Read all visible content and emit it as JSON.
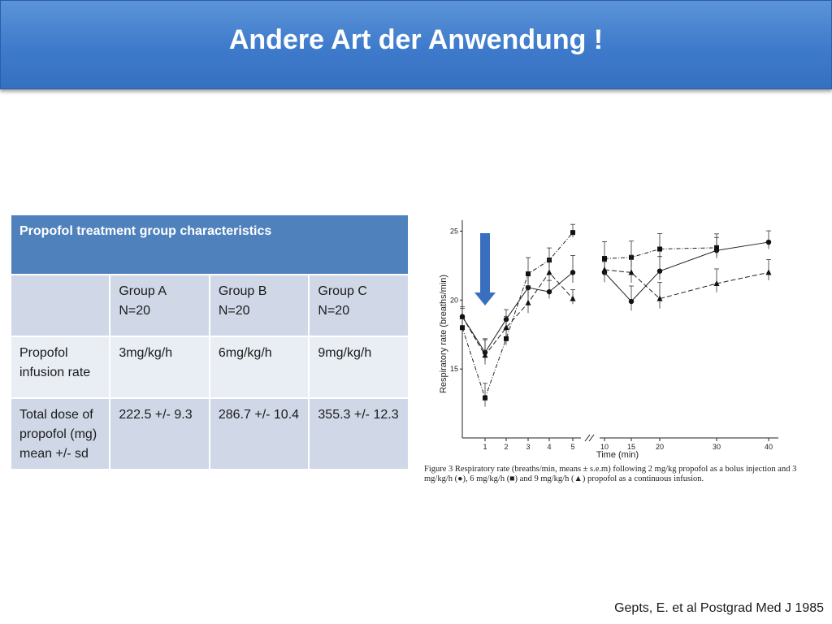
{
  "slide": {
    "title": "Andere Art der Anwendung !",
    "citation": "Gepts, E. et al Postgrad Med J 1985"
  },
  "table": {
    "caption": "Propofol treatment group characteristics",
    "groups": [
      "Group A\nN=20",
      "Group B\nN=20",
      "Group C\nN=20"
    ],
    "rows": [
      {
        "label": "Propofol infusion rate",
        "values": [
          "3mg/kg/h",
          "6mg/kg/h",
          "9mg/kg/h"
        ]
      },
      {
        "label": "Total dose of propofol (mg) mean +/- sd",
        "values": [
          "222.5 +/- 9.3",
          "286.7 +/- 10.4",
          "355.3 +/- 12.3"
        ]
      }
    ]
  },
  "figure": {
    "caption": "Figure 3   Respiratory rate (breaths/min, means ± s.e.m) following 2 mg/kg propofol as a bolus injection and 3 mg/kg/h (●), 6 mg/kg/h (■) and 9 mg/kg/h (▲) propofol as a continuous infusion.",
    "arrow_color": "#3a6fc0"
  },
  "chart_data": {
    "type": "line",
    "xlabel": "Time (min)",
    "ylabel": "Respiratory rate (breaths/min)",
    "x_ticks": [
      "1",
      "2",
      "3",
      "4",
      "5",
      "10",
      "15",
      "20",
      "30",
      "40"
    ],
    "y_ticks": [
      "15",
      "20",
      "25"
    ],
    "ylim": [
      10,
      25.5
    ],
    "x": [
      0,
      1,
      2,
      3,
      4,
      5,
      10,
      15,
      20,
      30,
      40
    ],
    "series": [
      {
        "name": "3 mg/kg/h",
        "marker": "circle",
        "values": [
          18.8,
          16.2,
          18.6,
          20.9,
          20.6,
          22.0,
          22.0,
          19.9,
          22.1,
          23.6,
          24.2
        ]
      },
      {
        "name": "6 mg/kg/h",
        "marker": "square",
        "values": [
          18.0,
          12.9,
          17.2,
          21.9,
          22.9,
          24.9,
          23.0,
          23.1,
          23.7,
          23.8,
          null
        ]
      },
      {
        "name": "9 mg/kg/h",
        "marker": "triangle",
        "values": [
          18.8,
          16.0,
          18.0,
          19.8,
          22.0,
          20.1,
          22.2,
          22.0,
          20.1,
          21.2,
          22.0
        ]
      }
    ],
    "grid": false
  }
}
